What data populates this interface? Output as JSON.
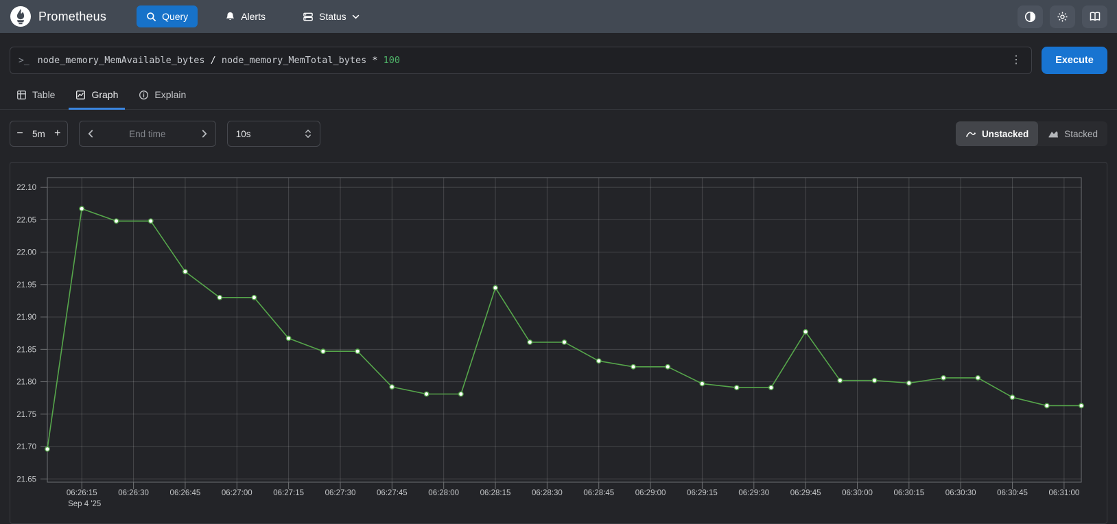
{
  "navbar": {
    "brand": "Prometheus",
    "items": [
      {
        "label": "Query"
      },
      {
        "label": "Alerts"
      },
      {
        "label": "Status"
      }
    ]
  },
  "query": {
    "expression": [
      {
        "text": "node_memory_MemAvailable_bytes",
        "kind": "metric"
      },
      {
        "text": " / ",
        "kind": "operator"
      },
      {
        "text": "node_memory_MemTotal_bytes",
        "kind": "metric"
      },
      {
        "text": " * ",
        "kind": "operator"
      },
      {
        "text": "100",
        "kind": "number"
      }
    ],
    "execute_label": "Execute"
  },
  "tabs": [
    {
      "label": "Table"
    },
    {
      "label": "Graph"
    },
    {
      "label": "Explain"
    }
  ],
  "controls": {
    "minus_label": "−",
    "duration": "5m",
    "plus_label": "+",
    "end_time_placeholder": "End time",
    "resolution": "10s",
    "unstacked_label": "Unstacked",
    "stacked_label": "Stacked"
  },
  "chart_data": {
    "type": "line",
    "title": "",
    "xlabel": "",
    "ylabel": "",
    "legend_position": "none",
    "grid": true,
    "series": [
      {
        "name": "node_memory_MemAvailable_bytes / node_memory_MemTotal_bytes * 100",
        "x": [
          "06:26:05",
          "06:26:15",
          "06:26:25",
          "06:26:35",
          "06:26:45",
          "06:26:55",
          "06:27:05",
          "06:27:15",
          "06:27:25",
          "06:27:35",
          "06:27:45",
          "06:27:55",
          "06:28:05",
          "06:28:15",
          "06:28:25",
          "06:28:35",
          "06:28:45",
          "06:28:55",
          "06:29:05",
          "06:29:15",
          "06:29:25",
          "06:29:35",
          "06:29:45",
          "06:29:55",
          "06:30:05",
          "06:30:15",
          "06:30:25",
          "06:30:35",
          "06:30:45",
          "06:30:55",
          "06:31:05"
        ],
        "values": [
          21.696,
          22.067,
          22.048,
          22.048,
          21.97,
          21.93,
          21.93,
          21.867,
          21.847,
          21.847,
          21.792,
          21.781,
          21.781,
          21.945,
          21.861,
          21.861,
          21.832,
          21.823,
          21.823,
          21.797,
          21.791,
          21.791,
          21.877,
          21.802,
          21.802,
          21.798,
          21.806,
          21.806,
          21.776,
          21.763,
          21.763
        ]
      }
    ],
    "ylim": [
      21.645,
      22.115
    ],
    "y_ticks": [
      22.1,
      22.05,
      22.0,
      21.95,
      21.9,
      21.85,
      21.8,
      21.75,
      21.7,
      21.65
    ],
    "x_domain_seconds": 300,
    "point_step_seconds": 10,
    "x_first_tick_offset_seconds": 10,
    "x_tick_step_seconds": 15,
    "x_tick_labels": [
      "06:26:15",
      "06:26:30",
      "06:26:45",
      "06:27:00",
      "06:27:15",
      "06:27:30",
      "06:27:45",
      "06:28:00",
      "06:28:15",
      "06:28:30",
      "06:28:45",
      "06:29:00",
      "06:29:15",
      "06:29:30",
      "06:29:45",
      "06:30:00",
      "06:30:15",
      "06:30:30",
      "06:30:45",
      "06:31:00"
    ],
    "x_axis_secondary_label": "Sep 4 '25",
    "line_color": "#56a64b",
    "point_fill_color": "#ffffff",
    "grid_color": "rgba(255,255,255,0.16)",
    "axis_border_color": "#6e7073",
    "tick_label_color": "#c6c8ca"
  }
}
